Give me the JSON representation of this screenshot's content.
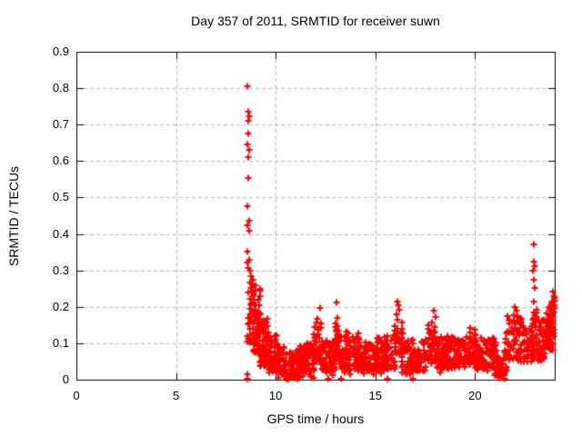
{
  "chart_data": {
    "type": "scatter",
    "title": "Day 357 of 2011, SRMTID for receiver suwn",
    "xlabel": "GPS time / hours",
    "ylabel": "SRMTID / TECUs",
    "xlim": [
      0,
      24
    ],
    "ylim": [
      0,
      0.9
    ],
    "xticks": {
      "values": [
        0,
        5,
        10,
        15,
        20
      ],
      "labels": [
        "0",
        "5",
        "10",
        "15",
        "20"
      ]
    },
    "yticks": {
      "values": [
        0,
        0.1,
        0.2,
        0.3,
        0.4,
        0.5,
        0.6,
        0.7,
        0.8,
        0.9
      ],
      "labels": [
        "0",
        "0.1",
        "0.2",
        "0.3",
        "0.4",
        "0.5",
        "0.6",
        "0.7",
        "0.8",
        "0.9"
      ]
    },
    "grid": true,
    "legend": "none",
    "marker": "plus",
    "colors": {
      "points": "#ff0000",
      "grid": "#b5b5b5",
      "axis": "#000000",
      "background": "#ffffff"
    },
    "seed": 20111357,
    "outlier_points": [
      [
        8.57,
        0.002
      ],
      [
        8.57,
        0.014
      ],
      [
        8.6,
        0.805
      ],
      [
        8.63,
        0.735
      ],
      [
        8.66,
        0.724
      ],
      [
        8.61,
        0.71
      ],
      [
        8.64,
        0.675
      ],
      [
        8.6,
        0.645
      ],
      [
        8.66,
        0.631
      ],
      [
        8.61,
        0.612
      ],
      [
        8.63,
        0.553
      ],
      [
        8.6,
        0.475
      ],
      [
        8.65,
        0.437
      ],
      [
        8.6,
        0.424
      ],
      [
        8.68,
        0.408
      ],
      [
        8.6,
        0.352
      ],
      [
        8.66,
        0.33
      ],
      [
        8.6,
        0.321
      ],
      [
        8.63,
        0.307
      ],
      [
        8.58,
        0.105
      ],
      [
        8.7,
        0.298
      ],
      [
        8.76,
        0.283
      ],
      [
        8.7,
        0.267
      ],
      [
        8.82,
        0.261
      ],
      [
        8.74,
        0.251
      ],
      [
        8.8,
        0.241
      ],
      [
        8.86,
        0.229
      ],
      [
        8.71,
        0.221
      ],
      [
        8.9,
        0.211
      ],
      [
        8.76,
        0.204
      ],
      [
        8.95,
        0.191
      ],
      [
        8.82,
        0.185
      ],
      [
        9.02,
        0.177
      ],
      [
        9.1,
        0.17
      ],
      [
        11.95,
        0.145
      ],
      [
        12.05,
        0.158
      ],
      [
        12.1,
        0.168
      ],
      [
        12.22,
        0.196
      ],
      [
        13.02,
        0.155
      ],
      [
        13.07,
        0.212
      ],
      [
        13.1,
        0.17
      ],
      [
        13.55,
        0.133
      ],
      [
        13.65,
        0.127
      ],
      [
        16.05,
        0.18
      ],
      [
        16.1,
        0.215
      ],
      [
        16.12,
        0.165
      ],
      [
        16.15,
        0.205
      ],
      [
        16.2,
        0.192
      ],
      [
        17.85,
        0.158
      ],
      [
        17.95,
        0.19
      ],
      [
        18.0,
        0.172
      ],
      [
        19.75,
        0.142
      ],
      [
        21.95,
        0.178
      ],
      [
        22.0,
        0.2
      ],
      [
        22.1,
        0.19
      ],
      [
        22.3,
        0.168
      ],
      [
        22.92,
        0.3
      ],
      [
        22.94,
        0.215
      ],
      [
        22.95,
        0.372
      ],
      [
        22.96,
        0.275
      ],
      [
        22.97,
        0.325
      ],
      [
        23.0,
        0.312
      ],
      [
        23.0,
        0.252
      ],
      [
        23.85,
        0.21
      ],
      [
        23.9,
        0.242
      ],
      [
        23.92,
        0.195
      ],
      [
        23.95,
        0.23
      ],
      [
        23.98,
        0.218
      ],
      [
        24.0,
        0.225
      ],
      [
        24.0,
        0.205
      ],
      [
        10.15,
        0.004
      ],
      [
        10.62,
        0.003
      ],
      [
        11.1,
        0.002
      ],
      [
        11.9,
        0.004
      ],
      [
        12.62,
        0.002
      ],
      [
        13.3,
        0.002
      ],
      [
        15.6,
        0.003
      ],
      [
        16.9,
        0.002
      ],
      [
        21.2,
        0.006
      ]
    ],
    "band_segments": [
      {
        "x0": 8.55,
        "x1": 8.9,
        "n": 22,
        "ylo": 0.1,
        "yhi": 0.3,
        "skew": 1.3
      },
      {
        "x0": 8.85,
        "x1": 9.25,
        "n": 45,
        "ylo": 0.07,
        "yhi": 0.26,
        "skew": 1.5
      },
      {
        "x0": 9.2,
        "x1": 9.65,
        "n": 55,
        "ylo": 0.04,
        "yhi": 0.18,
        "skew": 1.5
      },
      {
        "x0": 9.6,
        "x1": 10.1,
        "n": 55,
        "ylo": 0.025,
        "yhi": 0.13,
        "skew": 1.5
      },
      {
        "x0": 10.05,
        "x1": 10.45,
        "n": 40,
        "ylo": 0.015,
        "yhi": 0.09,
        "skew": 1.4
      },
      {
        "x0": 10.4,
        "x1": 11.25,
        "n": 85,
        "ylo": 0.005,
        "yhi": 0.075,
        "skew": 1.3
      },
      {
        "x0": 11.2,
        "x1": 11.95,
        "n": 70,
        "ylo": 0.02,
        "yhi": 0.1,
        "skew": 1.4
      },
      {
        "x0": 11.9,
        "x1": 12.3,
        "n": 25,
        "ylo": 0.05,
        "yhi": 0.155,
        "skew": 1.2
      },
      {
        "x0": 12.25,
        "x1": 13.0,
        "n": 60,
        "ylo": 0.025,
        "yhi": 0.105,
        "skew": 1.4
      },
      {
        "x0": 12.95,
        "x1": 13.2,
        "n": 18,
        "ylo": 0.06,
        "yhi": 0.15,
        "skew": 1.2
      },
      {
        "x0": 13.15,
        "x1": 14.2,
        "n": 85,
        "ylo": 0.03,
        "yhi": 0.12,
        "skew": 1.5
      },
      {
        "x0": 14.15,
        "x1": 15.2,
        "n": 85,
        "ylo": 0.025,
        "yhi": 0.105,
        "skew": 1.5
      },
      {
        "x0": 15.15,
        "x1": 16.0,
        "n": 70,
        "ylo": 0.03,
        "yhi": 0.115,
        "skew": 1.4
      },
      {
        "x0": 15.95,
        "x1": 16.4,
        "n": 25,
        "ylo": 0.07,
        "yhi": 0.165,
        "skew": 1.2
      },
      {
        "x0": 16.35,
        "x1": 17.55,
        "n": 95,
        "ylo": 0.025,
        "yhi": 0.11,
        "skew": 1.5
      },
      {
        "x0": 17.55,
        "x1": 18.15,
        "n": 35,
        "ylo": 0.05,
        "yhi": 0.15,
        "skew": 1.3
      },
      {
        "x0": 18.1,
        "x1": 19.6,
        "n": 115,
        "ylo": 0.03,
        "yhi": 0.12,
        "skew": 1.5
      },
      {
        "x0": 19.55,
        "x1": 20.05,
        "n": 35,
        "ylo": 0.04,
        "yhi": 0.135,
        "skew": 1.4
      },
      {
        "x0": 20.0,
        "x1": 21.05,
        "n": 80,
        "ylo": 0.03,
        "yhi": 0.115,
        "skew": 1.5
      },
      {
        "x0": 21.0,
        "x1": 21.6,
        "n": 45,
        "ylo": 0.012,
        "yhi": 0.08,
        "skew": 1.4
      },
      {
        "x0": 21.55,
        "x1": 22.45,
        "n": 60,
        "ylo": 0.05,
        "yhi": 0.175,
        "skew": 1.2
      },
      {
        "x0": 22.4,
        "x1": 22.95,
        "n": 42,
        "ylo": 0.05,
        "yhi": 0.15,
        "skew": 1.4
      },
      {
        "x0": 22.85,
        "x1": 23.1,
        "n": 10,
        "ylo": 0.1,
        "yhi": 0.2,
        "skew": 1.0
      },
      {
        "x0": 23.05,
        "x1": 23.6,
        "n": 45,
        "ylo": 0.05,
        "yhi": 0.165,
        "skew": 1.3
      },
      {
        "x0": 23.55,
        "x1": 24.0,
        "n": 48,
        "ylo": 0.08,
        "yhi": 0.22,
        "skew": 1.2
      }
    ]
  }
}
